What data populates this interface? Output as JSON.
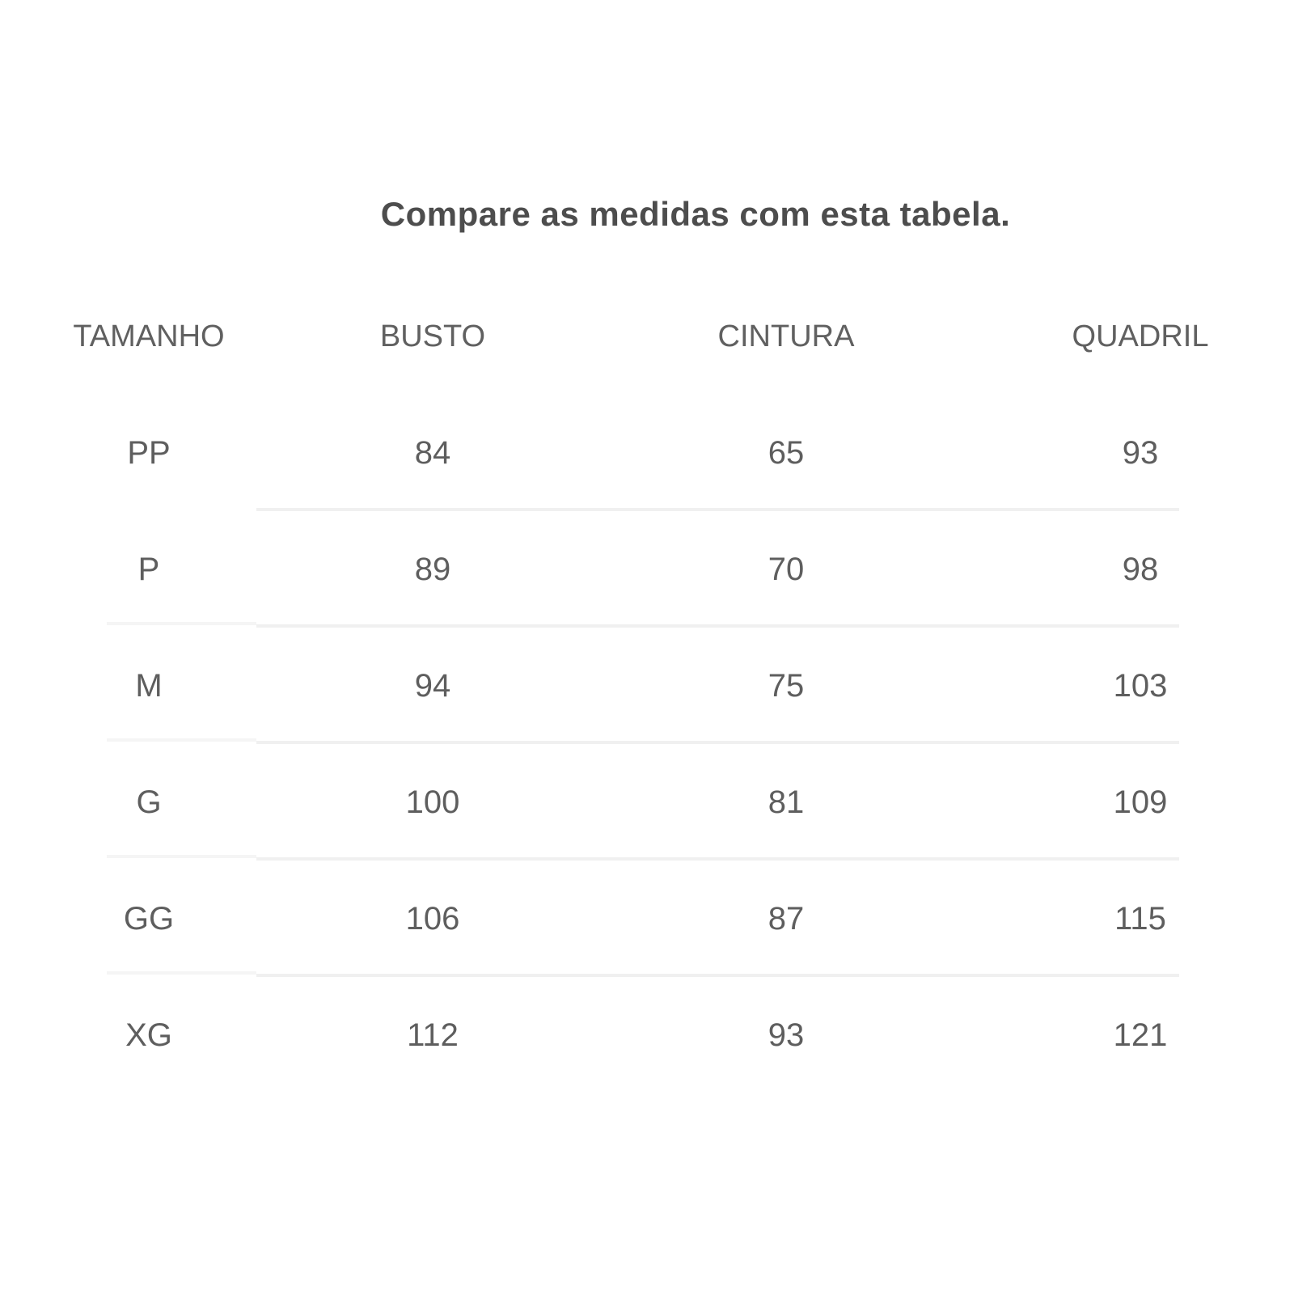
{
  "title": "Compare as medidas com esta tabela.",
  "table": {
    "columns": [
      "TAMANHO",
      "BUSTO",
      "CINTURA",
      "QUADRIL"
    ],
    "rows": [
      {
        "tamanho": "PP",
        "busto": "84",
        "cintura": "65",
        "quadril": "93"
      },
      {
        "tamanho": "P",
        "busto": "89",
        "cintura": "70",
        "quadril": "98"
      },
      {
        "tamanho": "M",
        "busto": "94",
        "cintura": "75",
        "quadril": "103"
      },
      {
        "tamanho": "G",
        "busto": "100",
        "cintura": "81",
        "quadril": "109"
      },
      {
        "tamanho": "GG",
        "busto": "106",
        "cintura": "87",
        "quadril": "115"
      },
      {
        "tamanho": "XG",
        "busto": "112",
        "cintura": "93",
        "quadril": "121"
      }
    ]
  },
  "colors": {
    "background": "#ffffff",
    "title_text": "#4d4d4d",
    "table_text": "#5e5e5e",
    "divider": "#f0f0f0",
    "divider_left_segment": "#f5f5f5"
  },
  "chart_data": {
    "type": "table",
    "title": "Compare as medidas com esta tabela.",
    "columns": [
      "TAMANHO",
      "BUSTO",
      "CINTURA",
      "QUADRIL"
    ],
    "rows": [
      [
        "PP",
        84,
        65,
        93
      ],
      [
        "P",
        89,
        70,
        98
      ],
      [
        "M",
        94,
        75,
        103
      ],
      [
        "G",
        100,
        81,
        109
      ],
      [
        "GG",
        106,
        87,
        115
      ],
      [
        "XG",
        112,
        93,
        121
      ]
    ]
  }
}
